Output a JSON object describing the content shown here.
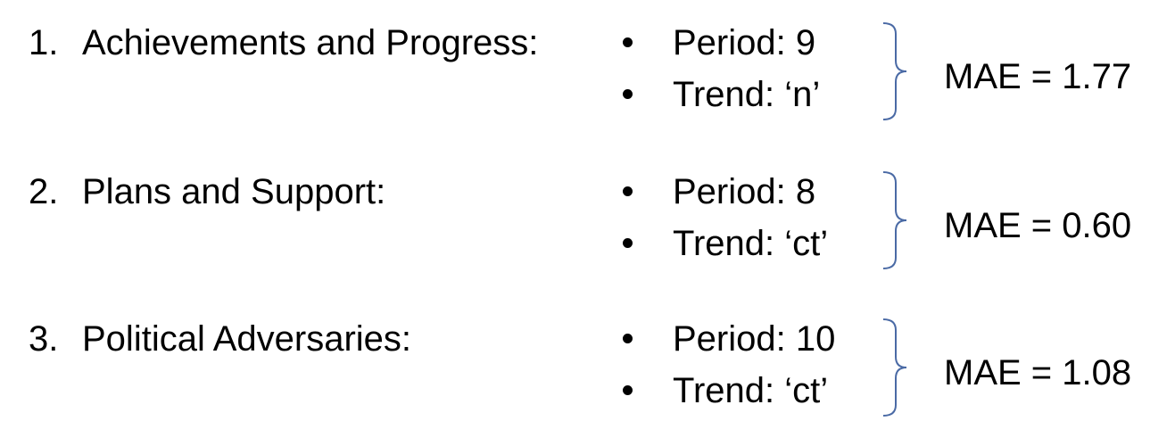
{
  "items": [
    {
      "number": "1.",
      "label": "Achievements and Progress:",
      "bullets": [
        "Period: 9",
        "Trend: ‘n’"
      ],
      "result": "MAE = 1.77"
    },
    {
      "number": "2.",
      "label": "Plans and Support:",
      "bullets": [
        "Period: 8",
        "Trend: ‘ct’"
      ],
      "result": "MAE = 0.60"
    },
    {
      "number": "3.",
      "label": "Political Adversaries:",
      "bullets": [
        "Period: 10",
        "Trend: ‘ct’"
      ],
      "result": "MAE = 1.08"
    }
  ],
  "colors": {
    "text": "#000000",
    "brace": "#4a6aa5"
  }
}
